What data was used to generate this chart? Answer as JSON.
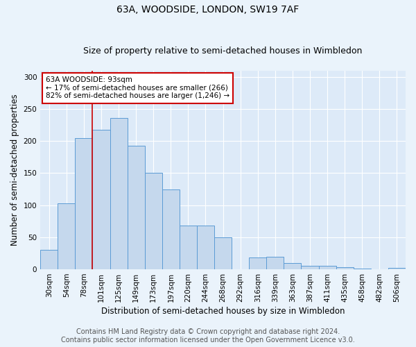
{
  "title1": "63A, WOODSIDE, LONDON, SW19 7AF",
  "title2": "Size of property relative to semi-detached houses in Wimbledon",
  "xlabel": "Distribution of semi-detached houses by size in Wimbledon",
  "ylabel": "Number of semi-detached properties",
  "footnote1": "Contains HM Land Registry data © Crown copyright and database right 2024.",
  "footnote2": "Contains public sector information licensed under the Open Government Licence v3.0.",
  "annotation_title": "63A WOODSIDE: 93sqm",
  "annotation_line1": "← 17% of semi-detached houses are smaller (266)",
  "annotation_line2": "82% of semi-detached houses are larger (1,246) →",
  "categories": [
    "30sqm",
    "54sqm",
    "78sqm",
    "101sqm",
    "125sqm",
    "149sqm",
    "173sqm",
    "197sqm",
    "220sqm",
    "244sqm",
    "268sqm",
    "292sqm",
    "316sqm",
    "339sqm",
    "363sqm",
    "387sqm",
    "411sqm",
    "435sqm",
    "458sqm",
    "482sqm",
    "506sqm"
  ],
  "values": [
    30,
    103,
    205,
    218,
    236,
    193,
    150,
    125,
    68,
    68,
    50,
    0,
    18,
    20,
    10,
    5,
    5,
    3,
    1,
    0,
    2
  ],
  "bar_color": "#c5d8ed",
  "bar_edge_color": "#5b9bd5",
  "vline_x": 2.5,
  "ylim": [
    0,
    310
  ],
  "yticks": [
    0,
    50,
    100,
    150,
    200,
    250,
    300
  ],
  "fig_bg_color": "#eaf3fb",
  "plot_bg_color": "#ddeaf8",
  "grid_color": "#ffffff",
  "annotation_box_edge": "#cc0000",
  "vline_color": "#cc0000",
  "title_fontsize": 10,
  "subtitle_fontsize": 9,
  "label_fontsize": 8.5,
  "tick_fontsize": 7.5,
  "footnote_fontsize": 7
}
